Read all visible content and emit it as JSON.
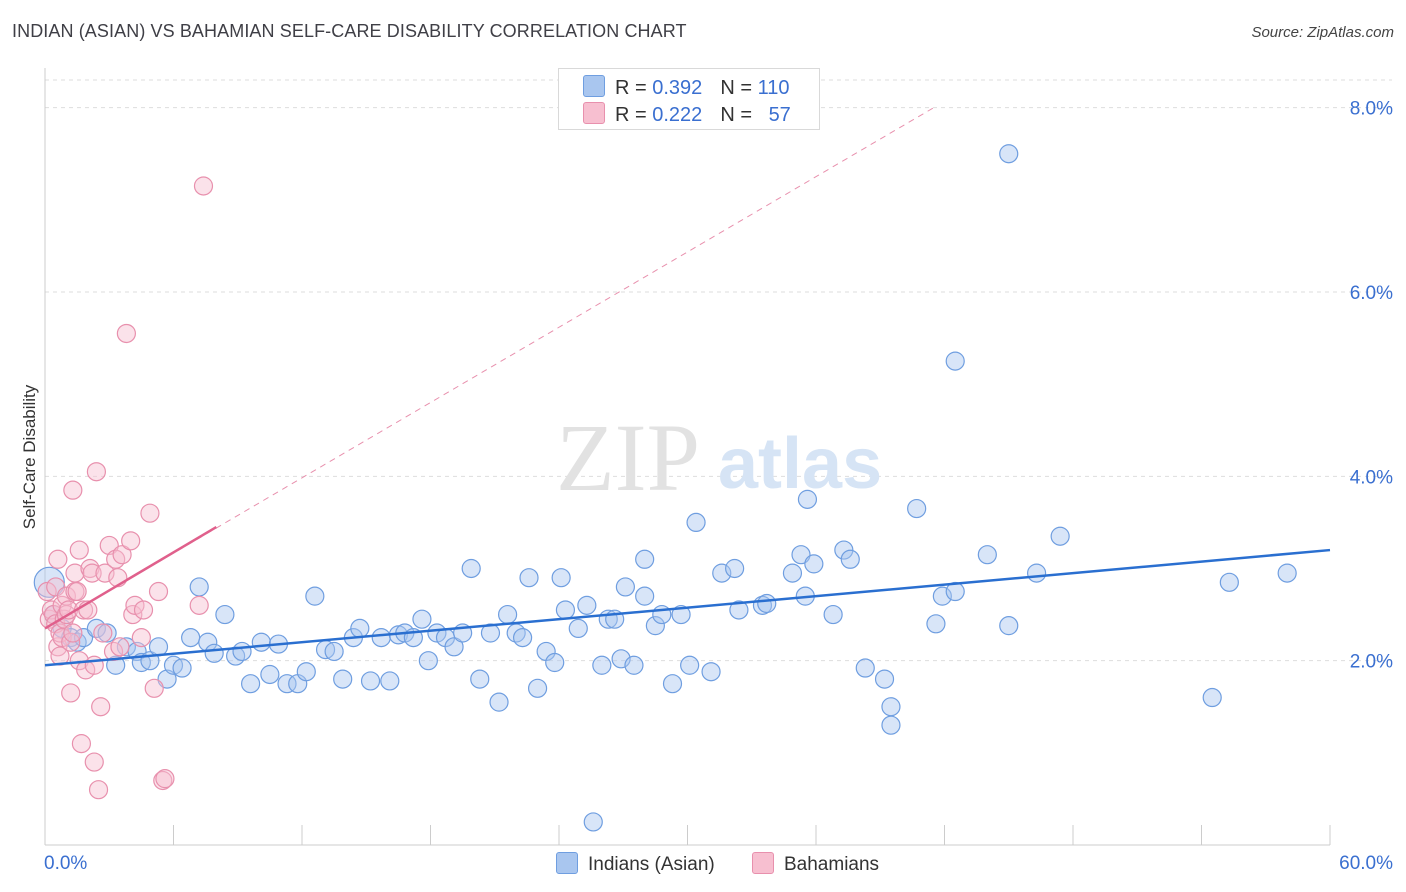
{
  "title": "INDIAN (ASIAN) VS BAHAMIAN SELF-CARE DISABILITY CORRELATION CHART",
  "source": "Source: ZipAtlas.com",
  "watermark": {
    "zip": "ZIP",
    "atlas": "atlas"
  },
  "colors": {
    "blue_fill": "#a9c6ef",
    "blue_stroke": "#6f9ee0",
    "blue_line": "#2a6fd0",
    "pink_fill": "#f7bfd0",
    "pink_stroke": "#e890ad",
    "pink_line": "#e0608c",
    "axis_label": "#3a6fd0",
    "grid": "#dddddd"
  },
  "legend": {
    "rows": [
      {
        "r_label": "R = ",
        "r_value": "0.392",
        "n_label": "N = ",
        "n_value": "110"
      },
      {
        "r_label": "R = ",
        "r_value": "0.222",
        "n_label": "N = ",
        "n_value": "57"
      }
    ],
    "series_names": [
      "Indians (Asian)",
      "Bahamians"
    ]
  },
  "chart_data": {
    "type": "scatter",
    "title": "INDIAN (ASIAN) VS BAHAMIAN SELF-CARE DISABILITY CORRELATION CHART",
    "xlabel": "",
    "ylabel": "Self-Care Disability",
    "xlim": [
      0,
      60
    ],
    "ylim": [
      0,
      8.3
    ],
    "x_tick_labels": [
      "0.0%",
      "60.0%"
    ],
    "y_ticks": [
      2,
      4,
      6,
      8
    ],
    "y_tick_labels": [
      "2.0%",
      "4.0%",
      "6.0%",
      "8.0%"
    ],
    "series": [
      {
        "name": "Indians (Asian)",
        "R": 0.392,
        "N": 110,
        "trend": {
          "x": [
            0,
            60
          ],
          "y": [
            1.95,
            3.2
          ]
        },
        "points": [
          [
            0.2,
            2.85
          ],
          [
            0.8,
            2.35
          ],
          [
            1.2,
            2.25
          ],
          [
            1.5,
            2.2
          ],
          [
            1.8,
            2.25
          ],
          [
            2.4,
            2.35
          ],
          [
            2.9,
            2.3
          ],
          [
            3.3,
            1.95
          ],
          [
            3.8,
            2.15
          ],
          [
            4.3,
            2.1
          ],
          [
            4.5,
            1.98
          ],
          [
            4.9,
            2.0
          ],
          [
            5.3,
            2.15
          ],
          [
            5.7,
            1.8
          ],
          [
            6.0,
            1.95
          ],
          [
            6.4,
            1.92
          ],
          [
            6.8,
            2.25
          ],
          [
            7.2,
            2.8
          ],
          [
            7.6,
            2.2
          ],
          [
            7.9,
            2.08
          ],
          [
            8.4,
            2.5
          ],
          [
            8.9,
            2.05
          ],
          [
            9.2,
            2.1
          ],
          [
            9.6,
            1.75
          ],
          [
            10.1,
            2.2
          ],
          [
            10.5,
            1.85
          ],
          [
            10.9,
            2.18
          ],
          [
            11.3,
            1.75
          ],
          [
            11.8,
            1.75
          ],
          [
            12.2,
            1.88
          ],
          [
            12.6,
            2.7
          ],
          [
            13.1,
            2.12
          ],
          [
            13.5,
            2.1
          ],
          [
            13.9,
            1.8
          ],
          [
            14.4,
            2.25
          ],
          [
            14.7,
            2.35
          ],
          [
            15.2,
            1.78
          ],
          [
            15.7,
            2.25
          ],
          [
            16.1,
            1.78
          ],
          [
            16.5,
            2.28
          ],
          [
            16.8,
            2.3
          ],
          [
            17.2,
            2.25
          ],
          [
            17.6,
            2.45
          ],
          [
            17.9,
            2.0
          ],
          [
            18.3,
            2.3
          ],
          [
            18.7,
            2.25
          ],
          [
            19.1,
            2.15
          ],
          [
            19.5,
            2.3
          ],
          [
            19.9,
            3.0
          ],
          [
            20.3,
            1.8
          ],
          [
            20.8,
            2.3
          ],
          [
            21.2,
            1.55
          ],
          [
            21.6,
            2.5
          ],
          [
            22.0,
            2.3
          ],
          [
            22.3,
            2.25
          ],
          [
            22.6,
            2.9
          ],
          [
            23.0,
            1.7
          ],
          [
            23.4,
            2.1
          ],
          [
            23.8,
            1.98
          ],
          [
            24.1,
            2.9
          ],
          [
            24.3,
            2.55
          ],
          [
            24.9,
            2.35
          ],
          [
            25.3,
            2.6
          ],
          [
            25.6,
            0.25
          ],
          [
            26.0,
            1.95
          ],
          [
            26.3,
            2.45
          ],
          [
            26.6,
            2.45
          ],
          [
            26.9,
            2.02
          ],
          [
            27.1,
            2.8
          ],
          [
            27.5,
            1.95
          ],
          [
            28.0,
            2.7
          ],
          [
            28.0,
            3.1
          ],
          [
            28.5,
            2.38
          ],
          [
            28.8,
            2.5
          ],
          [
            29.3,
            1.75
          ],
          [
            29.7,
            2.5
          ],
          [
            30.1,
            1.95
          ],
          [
            30.4,
            3.5
          ],
          [
            31.1,
            1.88
          ],
          [
            31.6,
            2.95
          ],
          [
            32.2,
            3.0
          ],
          [
            32.4,
            2.55
          ],
          [
            33.5,
            2.6
          ],
          [
            33.7,
            2.62
          ],
          [
            34.9,
            2.95
          ],
          [
            35.3,
            3.15
          ],
          [
            35.5,
            2.7
          ],
          [
            35.6,
            3.75
          ],
          [
            35.9,
            3.05
          ],
          [
            36.8,
            2.5
          ],
          [
            37.3,
            3.2
          ],
          [
            37.6,
            3.1
          ],
          [
            38.3,
            1.92
          ],
          [
            39.2,
            1.8
          ],
          [
            39.5,
            1.5
          ],
          [
            39.5,
            1.3
          ],
          [
            40.7,
            3.65
          ],
          [
            41.6,
            2.4
          ],
          [
            41.9,
            2.7
          ],
          [
            42.5,
            2.75
          ],
          [
            42.5,
            5.25
          ],
          [
            44.0,
            3.15
          ],
          [
            45.0,
            2.38
          ],
          [
            45.0,
            7.5
          ],
          [
            46.3,
            2.95
          ],
          [
            47.4,
            3.35
          ],
          [
            54.5,
            1.6
          ],
          [
            55.3,
            2.85
          ],
          [
            58.0,
            2.95
          ],
          [
            0.4,
            2.5
          ]
        ]
      },
      {
        "name": "Bahamians",
        "R": 0.222,
        "N": 57,
        "trend": {
          "x": [
            0,
            8
          ],
          "y": [
            2.35,
            3.45
          ]
        },
        "trend_extended": {
          "x": [
            0,
            41.5
          ],
          "y": [
            2.35,
            8.0
          ]
        },
        "points": [
          [
            0.1,
            2.75
          ],
          [
            0.2,
            2.45
          ],
          [
            0.3,
            2.55
          ],
          [
            0.4,
            2.5
          ],
          [
            0.5,
            2.4
          ],
          [
            0.5,
            2.8
          ],
          [
            0.6,
            2.15
          ],
          [
            0.6,
            3.1
          ],
          [
            0.7,
            2.3
          ],
          [
            0.7,
            2.05
          ],
          [
            0.8,
            2.25
          ],
          [
            0.8,
            2.6
          ],
          [
            0.9,
            2.45
          ],
          [
            1.0,
            2.5
          ],
          [
            1.0,
            2.7
          ],
          [
            1.1,
            2.55
          ],
          [
            1.2,
            1.65
          ],
          [
            1.2,
            2.2
          ],
          [
            1.3,
            3.85
          ],
          [
            1.3,
            2.3
          ],
          [
            1.4,
            2.75
          ],
          [
            1.4,
            2.95
          ],
          [
            1.5,
            2.75
          ],
          [
            1.6,
            3.2
          ],
          [
            1.6,
            2.0
          ],
          [
            1.7,
            1.1
          ],
          [
            1.8,
            2.55
          ],
          [
            1.9,
            1.9
          ],
          [
            2.0,
            2.55
          ],
          [
            2.1,
            3.0
          ],
          [
            2.2,
            2.95
          ],
          [
            2.3,
            0.9
          ],
          [
            2.3,
            1.95
          ],
          [
            2.4,
            4.05
          ],
          [
            2.5,
            0.6
          ],
          [
            2.6,
            1.5
          ],
          [
            2.7,
            2.3
          ],
          [
            2.8,
            2.95
          ],
          [
            3.0,
            3.25
          ],
          [
            3.2,
            2.1
          ],
          [
            3.3,
            3.1
          ],
          [
            3.4,
            2.9
          ],
          [
            3.5,
            2.15
          ],
          [
            3.6,
            3.15
          ],
          [
            3.8,
            5.55
          ],
          [
            4.0,
            3.3
          ],
          [
            4.1,
            2.5
          ],
          [
            4.2,
            2.6
          ],
          [
            4.5,
            2.25
          ],
          [
            4.6,
            2.55
          ],
          [
            4.9,
            3.6
          ],
          [
            5.1,
            1.7
          ],
          [
            5.3,
            2.75
          ],
          [
            5.5,
            0.7
          ],
          [
            5.6,
            0.72
          ],
          [
            7.2,
            2.6
          ],
          [
            7.4,
            7.15
          ]
        ]
      }
    ]
  }
}
